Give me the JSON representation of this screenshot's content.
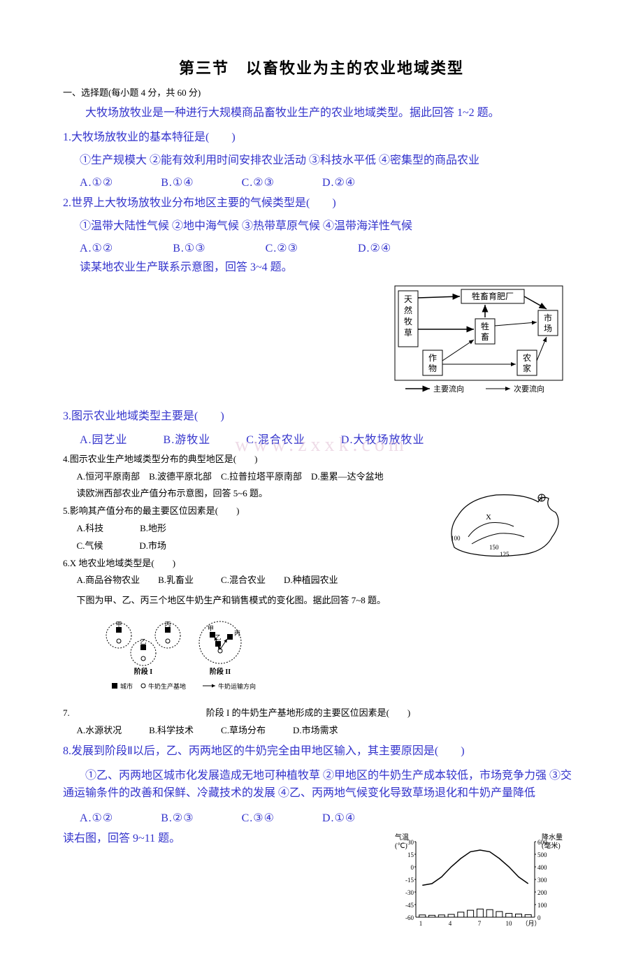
{
  "title": "第三节　以畜牧业为主的农业地域类型",
  "section1": "一、选择题(每小题 4 分，共 60 分)",
  "intro1": "大牧场放牧业是一种进行大规模商品畜牧业生产的农业地域类型。据此回答 1~2 题。",
  "q1": {
    "stem": "1.大牧场放牧业的基本特征是(　　)",
    "sub": "①生产规模大 ②能有效利用时间安排农业活动 ③科技水平低 ④密集型的商品农业",
    "options": "A.①②　　　　B.①④　　　　C.②③　　　　D.②④"
  },
  "q2": {
    "stem": "2.世界上大牧场放牧业分布地区主要的气候类型是(　　)",
    "sub": "①温带大陆性气候 ②地中海气候 ③热带草原气候 ④温带海洋性气候",
    "options": "A.①②　　　　　B.①③　　　　　C.②③　　　　　D.②④"
  },
  "intro2": "读某地农业生产联系示意图，回答 3~4 题。",
  "diagram1": {
    "nodes": {
      "a": "天然牧草",
      "b": "牲畜育肥厂",
      "c": "牲畜",
      "d": "市场",
      "e": "作物",
      "f": "农家"
    },
    "legend": {
      "main": "主要流向",
      "sub": "次要流向"
    }
  },
  "q3": {
    "stem": "3.图示农业地域类型主要是(　　)",
    "options": "A.园艺业　　　B.游牧业　　　C.混合农业　　　D.大牧场放牧业"
  },
  "watermark": "www.zxxk.com",
  "q4": {
    "stem": "4.图示农业生产地域类型分布的典型地区是(　　)",
    "options": "A.恒河平原南部　B.波德平原北部　C.拉普拉塔平原南部　D.墨累—达令盆地"
  },
  "intro3": "读欧洲西部农业产值分布示意图，回答 5~6 题。",
  "q5": {
    "stem": "5.影响其产值分布的最主要区位因素是(　　)",
    "options_ab": "A.科技　　　　B.地形",
    "options_cd": "C.气候　　　　D.市场"
  },
  "q6": {
    "stem": "6.X 地农业地域类型是(　　)",
    "options": "A.商品谷物农业　　B.乳畜业　　　C.混合农业　　D.种植园农业"
  },
  "intro4": "下图为甲、乙、丙三个地区牛奶生产和销售模式的变化图。据此回答 7~8 题。",
  "diagram3": {
    "labels": {
      "jia": "甲",
      "yi": "乙",
      "bing": "丙",
      "stage1": "阶段 I",
      "stage2": "阶段 II",
      "city": "城市",
      "base": "牛奶生产基地",
      "direction": "牛奶运输方向"
    }
  },
  "q7": {
    "stem": "7.　　　　　　　　　　　　　　　阶段 I 的牛奶生产基地形成的主要区位因素是(　　)",
    "options": "A.水源状况　　　B.科学技术　　　C.草场分布　　　D.市场需求"
  },
  "q8": {
    "stem": "8.发展到阶段Ⅱ以后，乙、丙两地区的牛奶完全由甲地区输入，其主要原因是(　　)",
    "sub": "①乙、丙两地区城市化发展造成无地可种植牧草 ②甲地区的牛奶生产成本较低，市场竞争力强 ③交通运输条件的改善和保鲜、冷藏技术的发展 ④乙、丙两地气候变化导致草场退化和牛奶产量降低",
    "options": "A.①②　　　　B.②③　　　　C.③④　　　　D.①④"
  },
  "intro5": "读右图，回答 9~11 题。",
  "diagram4": {
    "ylabel_left_top": "气温",
    "ylabel_left_unit": "(℃)",
    "ylabel_right_top": "降水量",
    "ylabel_right_unit": "(毫米)",
    "xlabel": "（月）",
    "xticks": [
      "1",
      "4",
      "7",
      "10"
    ],
    "yticks_left": [
      "30",
      "15",
      "0",
      "-15",
      "-30",
      "-45",
      "-60"
    ],
    "yticks_right": [
      "600",
      "500",
      "400",
      "300",
      "200",
      "100",
      "0"
    ],
    "temp_curve": [
      -22,
      -20,
      -12,
      0,
      10,
      18,
      20,
      18,
      10,
      0,
      -12,
      -20
    ],
    "precip_bars": [
      18,
      15,
      18,
      22,
      40,
      55,
      65,
      60,
      45,
      30,
      25,
      20
    ],
    "colors": {
      "line": "#000000",
      "bar_fill": "#ffffff",
      "bar_stroke": "#000000",
      "axis": "#000000"
    }
  }
}
